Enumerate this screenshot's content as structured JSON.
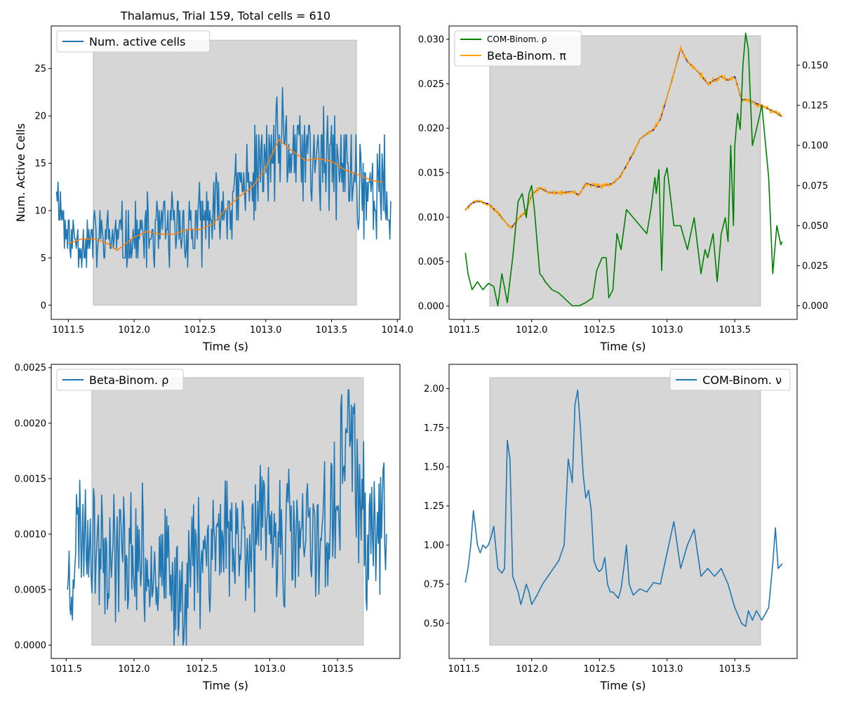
{
  "chart_data": [
    {
      "id": "p1",
      "type": "line",
      "title": "Thalamus, Trial 159, Total cells = 610",
      "xlabel": "Time (s)",
      "ylabel": "Num. Active Cells",
      "xlim": [
        1011.37,
        1014.02
      ],
      "ylim": [
        -1.5,
        29.5
      ],
      "xticks": [
        1011.5,
        1012.0,
        1012.5,
        1013.0,
        1013.5,
        1014.0
      ],
      "xtick_labels": [
        "1011.5",
        "1012.0",
        "1012.5",
        "1013.0",
        "1013.5",
        "1014.0"
      ],
      "yticks": [
        0,
        5,
        10,
        15,
        20,
        25
      ],
      "ytick_labels": [
        "0",
        "5",
        "10",
        "15",
        "20",
        "25"
      ],
      "shaded_region": {
        "x": [
          1011.69,
          1013.69
        ],
        "y": [
          0,
          28
        ],
        "color": "#d6d6d6"
      },
      "legend_location": "upper-left",
      "legend": [
        {
          "label": "Num. active cells",
          "color": "#1f77b4"
        }
      ],
      "series": [
        {
          "name": "Num. active cells",
          "color": "#1f77b4",
          "noise": {
            "amp_lo": 2.5,
            "amp_hi": 5.5,
            "seed": 11,
            "min": 0,
            "max": 28,
            "int": true
          },
          "x": [
            1011.41,
            1011.5,
            1011.75,
            1012.0,
            1012.25,
            1012.5,
            1012.75,
            1013.0,
            1013.1,
            1013.25,
            1013.4,
            1013.5,
            1013.75,
            1013.95
          ],
          "y": [
            12,
            7,
            7,
            7,
            8,
            8,
            11,
            15,
            17,
            16,
            15,
            15,
            13,
            11
          ]
        },
        {
          "name": "rolling-mean",
          "color": "#ff7f0e",
          "x": [
            1011.5,
            1011.6,
            1011.7,
            1011.8,
            1011.87,
            1012.0,
            1012.1,
            1012.2,
            1012.3,
            1012.4,
            1012.5,
            1012.6,
            1012.7,
            1012.8,
            1012.9,
            1013.0,
            1013.1,
            1013.2,
            1013.3,
            1013.4,
            1013.5,
            1013.6,
            1013.7,
            1013.8,
            1013.89
          ],
          "y": [
            6.5,
            7,
            7,
            6.5,
            5.8,
            7.2,
            7.8,
            7.5,
            7.5,
            8,
            8,
            8.6,
            10.2,
            11.5,
            12.5,
            14.5,
            17.5,
            16.3,
            15.3,
            15.5,
            15.2,
            14.3,
            13.8,
            13.2,
            13.0
          ]
        }
      ]
    },
    {
      "id": "p2",
      "type": "line",
      "xlabel": "Time (s)",
      "xlim": [
        1011.39,
        1013.96
      ],
      "ylim": [
        -0.0015,
        0.0315
      ],
      "xticks": [
        1011.5,
        1012.0,
        1012.5,
        1013.0,
        1013.5
      ],
      "xtick_labels": [
        "1011.5",
        "1012.0",
        "1012.5",
        "1013.0",
        "1013.5"
      ],
      "yticks": [
        0.0,
        0.005,
        0.01,
        0.015,
        0.02,
        0.025,
        0.03
      ],
      "ytick_labels": [
        "0.000",
        "0.005",
        "0.010",
        "0.015",
        "0.020",
        "0.025",
        "0.030"
      ],
      "ylim_right": [
        -0.0085,
        0.1745
      ],
      "yticks_right": [
        0.0,
        0.025,
        0.05,
        0.075,
        0.1,
        0.125,
        0.15
      ],
      "ytick_labels_right": [
        "0.000",
        "0.025",
        "0.050",
        "0.075",
        "0.100",
        "0.125",
        "0.150"
      ],
      "shaded_region": {
        "x": [
          1011.69,
          1013.69
        ],
        "y": [
          0,
          0.0304
        ],
        "color": "#d6d6d6"
      },
      "legend_location": "upper-left",
      "legend": [
        {
          "label": "COM-Binom. ρ",
          "color": "#008000",
          "size": "small"
        },
        {
          "label": "Beta-Binom. π",
          "color": "#ffa500",
          "size": "normal"
        }
      ],
      "series": [
        {
          "name": "blue-pi",
          "color": "#0000cc",
          "axis": "left",
          "x": [
            1011.51,
            1011.55,
            1011.6,
            1011.68,
            1011.75,
            1011.82,
            1011.85,
            1011.9,
            1011.96,
            1012.0,
            1012.06,
            1012.12,
            1012.2,
            1012.3,
            1012.35,
            1012.4,
            1012.5,
            1012.6,
            1012.65,
            1012.7,
            1012.75,
            1012.8,
            1012.85,
            1012.9,
            1012.95,
            1013.0,
            1013.05,
            1013.1,
            1013.15,
            1013.2,
            1013.25,
            1013.3,
            1013.4,
            1013.45,
            1013.5,
            1013.55,
            1013.6,
            1013.7,
            1013.8,
            1013.85
          ],
          "y": [
            0.0108,
            0.0115,
            0.0118,
            0.0115,
            0.0105,
            0.0092,
            0.0088,
            0.0098,
            0.0107,
            0.0125,
            0.0133,
            0.0128,
            0.0127,
            0.0129,
            0.0125,
            0.0138,
            0.0134,
            0.0138,
            0.0145,
            0.0158,
            0.0172,
            0.0188,
            0.0194,
            0.0198,
            0.021,
            0.0235,
            0.0262,
            0.029,
            0.0275,
            0.0268,
            0.026,
            0.025,
            0.0258,
            0.0254,
            0.0258,
            0.0232,
            0.0232,
            0.0225,
            0.0218,
            0.0213
          ]
        },
        {
          "name": "Beta-Binom. π",
          "color": "#ffa500",
          "axis": "left",
          "noise": {
            "amp_lo": 0.0002,
            "amp_hi": 0.0003,
            "seed": 5
          },
          "x": [
            1011.51,
            1011.55,
            1011.6,
            1011.68,
            1011.75,
            1011.82,
            1011.85,
            1011.9,
            1011.96,
            1012.0,
            1012.06,
            1012.12,
            1012.2,
            1012.3,
            1012.35,
            1012.4,
            1012.5,
            1012.6,
            1012.65,
            1012.7,
            1012.75,
            1012.8,
            1012.85,
            1012.9,
            1012.95,
            1013.0,
            1013.05,
            1013.1,
            1013.15,
            1013.2,
            1013.25,
            1013.3,
            1013.4,
            1013.45,
            1013.5,
            1013.55,
            1013.6,
            1013.7,
            1013.8,
            1013.85
          ],
          "y": [
            0.0108,
            0.0115,
            0.0118,
            0.0115,
            0.0105,
            0.0092,
            0.0088,
            0.0098,
            0.0107,
            0.0125,
            0.0133,
            0.0128,
            0.0127,
            0.0129,
            0.0125,
            0.0138,
            0.0134,
            0.0138,
            0.0145,
            0.0158,
            0.0172,
            0.0188,
            0.0194,
            0.0198,
            0.021,
            0.0235,
            0.0262,
            0.029,
            0.0275,
            0.0268,
            0.026,
            0.025,
            0.0258,
            0.0254,
            0.0258,
            0.0232,
            0.0232,
            0.0225,
            0.0218,
            0.0213
          ]
        },
        {
          "name": "COM-Binom. ρ",
          "color": "#008000",
          "axis": "right",
          "x": [
            1011.51,
            1011.53,
            1011.56,
            1011.6,
            1011.64,
            1011.68,
            1011.72,
            1011.75,
            1011.78,
            1011.82,
            1011.86,
            1011.9,
            1011.93,
            1011.96,
            1011.98,
            1012.0,
            1012.02,
            1012.04,
            1012.06,
            1012.08,
            1012.1,
            1012.15,
            1012.2,
            1012.25,
            1012.3,
            1012.35,
            1012.4,
            1012.45,
            1012.48,
            1012.52,
            1012.55,
            1012.57,
            1012.6,
            1012.63,
            1012.66,
            1012.7,
            1012.75,
            1012.8,
            1012.85,
            1012.88,
            1012.91,
            1012.92,
            1012.94,
            1012.96,
            1012.98,
            1013.0,
            1013.05,
            1013.1,
            1013.15,
            1013.2,
            1013.25,
            1013.28,
            1013.3,
            1013.34,
            1013.37,
            1013.4,
            1013.43,
            1013.45,
            1013.47,
            1013.49,
            1013.5,
            1013.52,
            1013.54,
            1013.56,
            1013.58,
            1013.6,
            1013.63,
            1013.66,
            1013.7,
            1013.75,
            1013.78,
            1013.81,
            1013.84,
            1013.85
          ],
          "y": [
            0.033,
            0.02,
            0.01,
            0.015,
            0.01,
            0.014,
            0.012,
            0.0,
            0.02,
            0.002,
            0.03,
            0.065,
            0.07,
            0.055,
            0.07,
            0.075,
            0.06,
            0.04,
            0.02,
            0.018,
            0.015,
            0.01,
            0.008,
            0.004,
            0.0,
            0.0,
            0.002,
            0.005,
            0.022,
            0.03,
            0.03,
            0.005,
            0.01,
            0.045,
            0.035,
            0.06,
            0.055,
            0.05,
            0.045,
            0.06,
            0.08,
            0.07,
            0.085,
            0.022,
            0.08,
            0.086,
            0.05,
            0.05,
            0.035,
            0.055,
            0.02,
            0.035,
            0.03,
            0.045,
            0.015,
            0.045,
            0.055,
            0.04,
            0.1,
            0.05,
            0.1,
            0.12,
            0.11,
            0.15,
            0.17,
            0.16,
            0.1,
            0.11,
            0.125,
            0.08,
            0.02,
            0.05,
            0.038,
            0.04
          ]
        }
      ]
    },
    {
      "id": "p3",
      "type": "line",
      "xlabel": "Time (s)",
      "xlim": [
        1011.39,
        1013.96
      ],
      "ylim": [
        -0.00012,
        0.00253
      ],
      "xticks": [
        1011.5,
        1012.0,
        1012.5,
        1013.0,
        1013.5
      ],
      "xtick_labels": [
        "1011.5",
        "1012.0",
        "1012.5",
        "1013.0",
        "1013.5"
      ],
      "yticks": [
        0.0,
        0.0005,
        0.001,
        0.0015,
        0.002,
        0.0025
      ],
      "ytick_labels": [
        "0.0000",
        "0.0005",
        "0.0010",
        "0.0015",
        "0.0020",
        "0.0025"
      ],
      "shaded_region": {
        "x": [
          1011.69,
          1013.69
        ],
        "y": [
          0,
          0.00241
        ],
        "color": "#d6d6d6"
      },
      "legend_location": "upper-left",
      "legend": [
        {
          "label": "Beta-Binom. ρ",
          "color": "#1f77b4"
        }
      ],
      "series": [
        {
          "name": "Beta-Binom. ρ",
          "color": "#1f77b4",
          "noise": {
            "amp_lo": 0.0005,
            "amp_hi": 0.0006,
            "seed": 23,
            "min": 0,
            "max": 0.0023
          },
          "x": [
            1011.51,
            1011.6,
            1011.7,
            1011.8,
            1012.0,
            1012.2,
            1012.3,
            1012.5,
            1012.7,
            1012.9,
            1013.1,
            1013.3,
            1013.5,
            1013.58,
            1013.62,
            1013.7,
            1013.86
          ],
          "y": [
            0.0005,
            0.0011,
            0.001,
            0.0009,
            0.0008,
            0.0007,
            0.0004,
            0.0009,
            0.001,
            0.001,
            0.001,
            0.0009,
            0.0012,
            0.0022,
            0.0016,
            0.001,
            0.001
          ]
        }
      ]
    },
    {
      "id": "p4",
      "type": "line",
      "xlabel": "Time (s)",
      "xlim": [
        1011.39,
        1013.96
      ],
      "ylim": [
        0.275,
        2.155
      ],
      "xticks": [
        1011.5,
        1012.0,
        1012.5,
        1013.0,
        1013.5
      ],
      "xtick_labels": [
        "1011.5",
        "1012.0",
        "1012.5",
        "1013.0",
        "1013.5"
      ],
      "yticks": [
        0.5,
        0.75,
        1.0,
        1.25,
        1.5,
        1.75,
        2.0
      ],
      "ytick_labels": [
        "0.50",
        "0.75",
        "1.00",
        "1.25",
        "1.50",
        "1.75",
        "2.00"
      ],
      "shaded_region": {
        "x": [
          1011.69,
          1013.69
        ],
        "y": [
          0.36,
          2.07
        ],
        "color": "#d6d6d6"
      },
      "legend_location": "upper-right",
      "legend": [
        {
          "label": "COM-Binom. ν",
          "color": "#1f77b4"
        }
      ],
      "series": [
        {
          "name": "COM-Binom. ν",
          "color": "#1f77b4",
          "x": [
            1011.51,
            1011.53,
            1011.55,
            1011.57,
            1011.6,
            1011.62,
            1011.64,
            1011.66,
            1011.68,
            1011.7,
            1011.72,
            1011.75,
            1011.78,
            1011.8,
            1011.82,
            1011.84,
            1011.86,
            1011.88,
            1011.9,
            1011.92,
            1011.94,
            1011.96,
            1011.98,
            1012.0,
            1012.04,
            1012.08,
            1012.12,
            1012.16,
            1012.2,
            1012.24,
            1012.27,
            1012.3,
            1012.32,
            1012.34,
            1012.36,
            1012.38,
            1012.4,
            1012.42,
            1012.44,
            1012.46,
            1012.48,
            1012.5,
            1012.52,
            1012.54,
            1012.56,
            1012.58,
            1012.6,
            1012.62,
            1012.64,
            1012.66,
            1012.68,
            1012.7,
            1012.72,
            1012.75,
            1012.8,
            1012.85,
            1012.9,
            1012.95,
            1013.0,
            1013.05,
            1013.1,
            1013.15,
            1013.2,
            1013.25,
            1013.3,
            1013.35,
            1013.4,
            1013.45,
            1013.5,
            1013.55,
            1013.58,
            1013.6,
            1013.63,
            1013.66,
            1013.7,
            1013.75,
            1013.78,
            1013.8,
            1013.82,
            1013.85
          ],
          "y": [
            0.76,
            0.85,
            1.0,
            1.22,
            1.0,
            0.95,
            1.0,
            0.98,
            1.0,
            1.05,
            1.12,
            0.85,
            0.82,
            0.85,
            1.67,
            1.55,
            0.8,
            0.75,
            0.7,
            0.62,
            0.68,
            0.75,
            0.7,
            0.62,
            0.68,
            0.75,
            0.8,
            0.85,
            0.9,
            1.0,
            1.55,
            1.4,
            1.9,
            1.99,
            1.75,
            1.45,
            1.3,
            1.35,
            1.22,
            0.9,
            0.85,
            0.83,
            0.85,
            0.92,
            0.75,
            0.7,
            0.7,
            0.68,
            0.66,
            0.72,
            0.85,
            1.0,
            0.75,
            0.68,
            0.72,
            0.7,
            0.76,
            0.75,
            0.95,
            1.15,
            0.85,
            1.0,
            1.1,
            0.8,
            0.85,
            0.8,
            0.85,
            0.75,
            0.6,
            0.5,
            0.48,
            0.58,
            0.52,
            0.58,
            0.52,
            0.6,
            0.88,
            1.11,
            0.85,
            0.88
          ]
        }
      ]
    }
  ]
}
